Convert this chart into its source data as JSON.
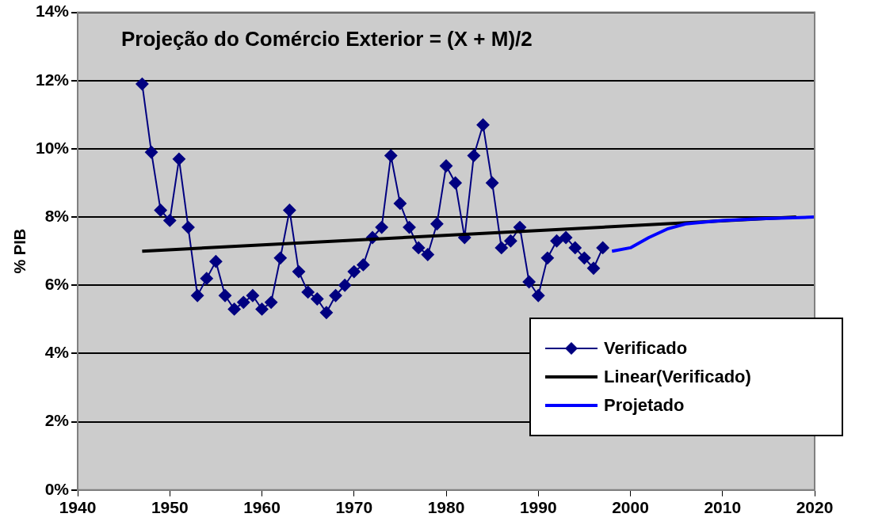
{
  "chart_data": {
    "type": "line",
    "title": "Projeção do Comércio Exterior = (X + M)/2",
    "ylabel": "% PIB",
    "xlim": [
      1940,
      2020
    ],
    "xticks": [
      1940,
      1950,
      1960,
      1970,
      1980,
      1990,
      2000,
      2010,
      2020
    ],
    "ylim": [
      0,
      14
    ],
    "yticks": [
      {
        "value": 0,
        "label": "0%"
      },
      {
        "value": 2,
        "label": "2%"
      },
      {
        "value": 4,
        "label": "4%"
      },
      {
        "value": 6,
        "label": "6%"
      },
      {
        "value": 8,
        "label": "8%"
      },
      {
        "value": 10,
        "label": "10%"
      },
      {
        "value": 12,
        "label": "12%"
      },
      {
        "value": 14,
        "label": "14%"
      }
    ],
    "grid": "y",
    "legend": "bottom right",
    "series": [
      {
        "name": "Verificado",
        "color": "#000080",
        "marker": "diamond",
        "x": [
          1947,
          1948,
          1949,
          1950,
          1951,
          1952,
          1953,
          1954,
          1955,
          1956,
          1957,
          1958,
          1959,
          1960,
          1961,
          1962,
          1963,
          1964,
          1965,
          1966,
          1967,
          1968,
          1969,
          1970,
          1971,
          1972,
          1973,
          1974,
          1975,
          1976,
          1977,
          1978,
          1979,
          1980,
          1981,
          1982,
          1983,
          1984,
          1985,
          1986,
          1987,
          1988,
          1989,
          1990,
          1991,
          1992,
          1993,
          1994,
          1995,
          1996,
          1997
        ],
        "values": [
          11.9,
          9.9,
          8.2,
          7.9,
          9.7,
          7.7,
          5.7,
          6.2,
          6.7,
          5.7,
          5.3,
          5.5,
          5.7,
          5.3,
          5.5,
          6.8,
          8.2,
          6.4,
          5.8,
          5.6,
          5.2,
          5.7,
          6.0,
          6.4,
          6.6,
          7.4,
          7.7,
          9.8,
          8.4,
          7.7,
          7.1,
          6.9,
          7.8,
          9.5,
          9.0,
          7.4,
          9.8,
          10.7,
          9.0,
          7.1,
          7.3,
          7.7,
          6.1,
          5.7,
          6.8,
          7.3,
          7.4,
          7.1,
          6.8,
          6.5,
          7.1
        ]
      },
      {
        "name": "Linear(Verificado)",
        "color": "#000000",
        "marker": "none",
        "x": [
          1947,
          2018
        ],
        "values": [
          7.0,
          8.0
        ]
      },
      {
        "name": "Projetado",
        "color": "#0000ff",
        "marker": "none",
        "x": [
          1998,
          2000,
          2002,
          2004,
          2006,
          2008,
          2010,
          2014,
          2020
        ],
        "values": [
          7.0,
          7.1,
          7.4,
          7.65,
          7.8,
          7.85,
          7.9,
          7.95,
          8.0
        ]
      }
    ]
  }
}
